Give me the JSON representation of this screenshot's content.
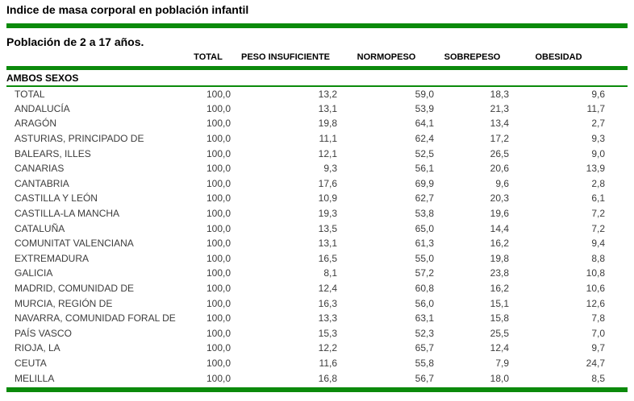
{
  "title": "Indice de masa corporal en población infantil",
  "subtitle": "Población de 2 a 17 años.",
  "colors": {
    "accent_green": "#0b8a0b",
    "body_text": "#3c3c3c",
    "heading_text": "#000000",
    "background": "#ffffff"
  },
  "table": {
    "columns": [
      "TOTAL",
      "PESO INSUFICIENTE",
      "NORMOPESO",
      "SOBREPESO",
      "OBESIDAD"
    ],
    "section_header": "AMBOS SEXOS",
    "rows": [
      {
        "region": "TOTAL",
        "values": [
          "100,0",
          "13,2",
          "59,0",
          "18,3",
          "9,6"
        ]
      },
      {
        "region": "ANDALUCÍA",
        "values": [
          "100,0",
          "13,1",
          "53,9",
          "21,3",
          "11,7"
        ]
      },
      {
        "region": "ARAGÓN",
        "values": [
          "100,0",
          "19,8",
          "64,1",
          "13,4",
          "2,7"
        ]
      },
      {
        "region": "ASTURIAS, PRINCIPADO DE",
        "values": [
          "100,0",
          "11,1",
          "62,4",
          "17,2",
          "9,3"
        ]
      },
      {
        "region": "BALEARS, ILLES",
        "values": [
          "100,0",
          "12,1",
          "52,5",
          "26,5",
          "9,0"
        ]
      },
      {
        "region": "CANARIAS",
        "values": [
          "100,0",
          "9,3",
          "56,1",
          "20,6",
          "13,9"
        ]
      },
      {
        "region": "CANTABRIA",
        "values": [
          "100,0",
          "17,6",
          "69,9",
          "9,6",
          "2,8"
        ]
      },
      {
        "region": "CASTILLA Y LEÓN",
        "values": [
          "100,0",
          "10,9",
          "62,7",
          "20,3",
          "6,1"
        ]
      },
      {
        "region": "CASTILLA-LA MANCHA",
        "values": [
          "100,0",
          "19,3",
          "53,8",
          "19,6",
          "7,2"
        ]
      },
      {
        "region": "CATALUÑA",
        "values": [
          "100,0",
          "13,5",
          "65,0",
          "14,4",
          "7,2"
        ]
      },
      {
        "region": "COMUNITAT VALENCIANA",
        "values": [
          "100,0",
          "13,1",
          "61,3",
          "16,2",
          "9,4"
        ]
      },
      {
        "region": "EXTREMADURA",
        "values": [
          "100,0",
          "16,5",
          "55,0",
          "19,8",
          "8,8"
        ]
      },
      {
        "region": "GALICIA",
        "values": [
          "100,0",
          "8,1",
          "57,2",
          "23,8",
          "10,8"
        ]
      },
      {
        "region": "MADRID, COMUNIDAD DE",
        "values": [
          "100,0",
          "12,4",
          "60,8",
          "16,2",
          "10,6"
        ]
      },
      {
        "region": "MURCIA, REGIÓN DE",
        "values": [
          "100,0",
          "16,3",
          "56,0",
          "15,1",
          "12,6"
        ]
      },
      {
        "region": "NAVARRA, COMUNIDAD FORAL DE",
        "values": [
          "100,0",
          "13,3",
          "63,1",
          "15,8",
          "7,8"
        ]
      },
      {
        "region": "PAÍS VASCO",
        "values": [
          "100,0",
          "15,3",
          "52,3",
          "25,5",
          "7,0"
        ]
      },
      {
        "region": "RIOJA, LA",
        "values": [
          "100,0",
          "12,2",
          "65,7",
          "12,4",
          "9,7"
        ]
      },
      {
        "region": "CEUTA",
        "values": [
          "100,0",
          "11,6",
          "55,8",
          "7,9",
          "24,7"
        ]
      },
      {
        "region": "MELILLA",
        "values": [
          "100,0",
          "16,8",
          "56,7",
          "18,0",
          "8,5"
        ]
      }
    ]
  }
}
